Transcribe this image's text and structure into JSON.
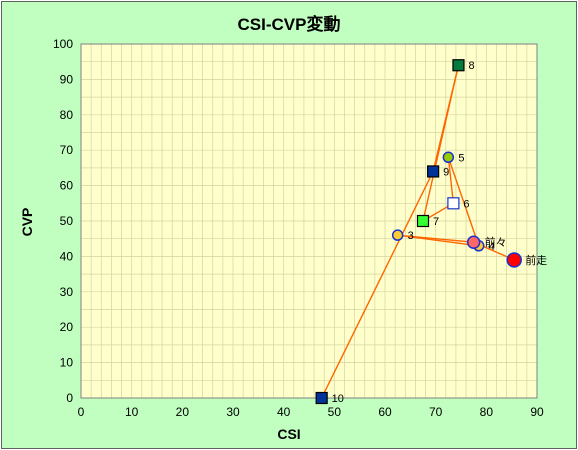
{
  "chart_data": {
    "type": "scatter",
    "title": "CSI-CVP変動",
    "xlabel": "CSI",
    "ylabel": "CVP",
    "xlim": [
      0,
      90
    ],
    "ylim": [
      0,
      100
    ],
    "x_ticks": [
      "0",
      "10",
      "20",
      "30",
      "40",
      "50",
      "60",
      "70",
      "80",
      "90"
    ],
    "y_ticks": [
      "0",
      "10",
      "20",
      "30",
      "40",
      "50",
      "60",
      "70",
      "80",
      "90",
      "100"
    ],
    "grid": true,
    "colors": {
      "background": "#c0ffc0",
      "plot_area": "#ffffcc",
      "gridline": "#d4d4a0",
      "connector_line": "#ff6600"
    },
    "points": [
      {
        "label": "10",
        "x": 47.5,
        "y": 0,
        "marker": "square",
        "fill": "#003399",
        "stroke": "#000000"
      },
      {
        "label": "9",
        "x": 69.5,
        "y": 64,
        "marker": "square",
        "fill": "#003399",
        "stroke": "#000000"
      },
      {
        "label": "8",
        "x": 74.5,
        "y": 94,
        "marker": "square",
        "fill": "#007a3d",
        "stroke": "#000000"
      },
      {
        "label": "7",
        "x": 67.5,
        "y": 50,
        "marker": "square",
        "fill": "#33ff33",
        "stroke": "#000000"
      },
      {
        "label": "6",
        "x": 73.5,
        "y": 55,
        "marker": "square",
        "fill": "#ffffff",
        "stroke": "#1a33cc"
      },
      {
        "label": "5",
        "x": 72.5,
        "y": 68,
        "marker": "circle",
        "fill": "#99cc00",
        "stroke": "#1a33cc"
      },
      {
        "label": "4",
        "x": 78.5,
        "y": 43,
        "marker": "circle",
        "fill": "#ffcc33",
        "stroke": "#1a33cc"
      },
      {
        "label": "3",
        "x": 62.5,
        "y": 46,
        "marker": "circle",
        "fill": "#ffcc33",
        "stroke": "#1a33cc"
      },
      {
        "label": "前々",
        "x": 77.5,
        "y": 44,
        "marker": "circle",
        "fill": "#ff6666",
        "stroke": "#1a33cc"
      },
      {
        "label": "前走",
        "x": 85.5,
        "y": 39,
        "marker": "circle",
        "fill": "#ff0000",
        "stroke": "#1a33cc"
      }
    ]
  }
}
